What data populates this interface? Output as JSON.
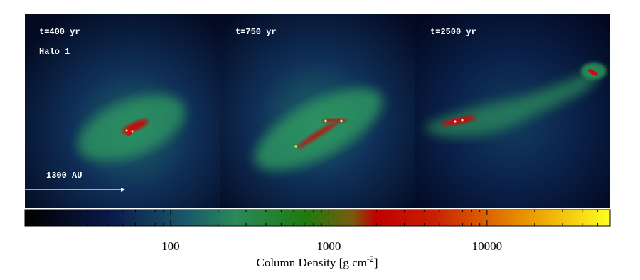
{
  "panels": [
    {
      "time": "t=400 yr",
      "label": "Halo 1",
      "scale_bar": "1300 AU"
    },
    {
      "time": "t=750 yr"
    },
    {
      "time": "t=2500 yr"
    }
  ],
  "colorbar": {
    "scale": "log",
    "xlim": [
      12,
      60000
    ],
    "xticks": [
      100,
      1000,
      10000
    ],
    "minor_xticks": [
      20,
      30,
      40,
      50,
      60,
      70,
      80,
      90,
      200,
      300,
      400,
      500,
      600,
      700,
      800,
      900,
      2000,
      3000,
      4000,
      5000,
      6000,
      7000,
      8000,
      9000,
      20000,
      30000,
      40000,
      50000
    ],
    "label": "Column Density [g cm",
    "label_exponent": "-2",
    "label_end": "]"
  }
}
